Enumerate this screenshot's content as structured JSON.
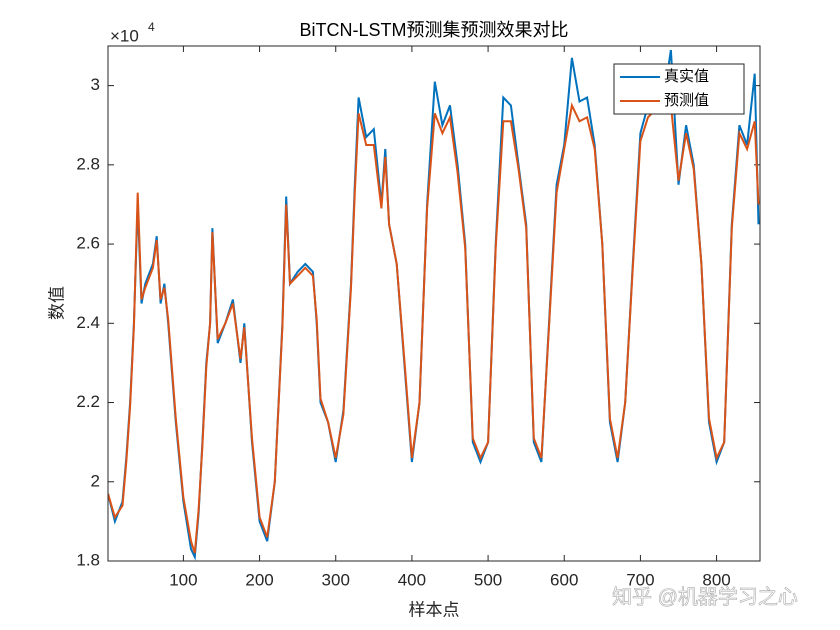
{
  "chart_data": {
    "type": "line",
    "title": "BiTCN-LSTM预测集预测效果对比",
    "xlabel": "样本点",
    "ylabel": "数值",
    "y_exponent_base": "×10",
    "y_exponent_power": "4",
    "watermark": "知乎 @机器学习之心",
    "xlim": [
      1,
      857
    ],
    "ylim": [
      18000,
      31000
    ],
    "xticks": [
      100,
      200,
      300,
      400,
      500,
      600,
      700,
      800
    ],
    "yticks": [
      {
        "value": 18000,
        "label": "1.8"
      },
      {
        "value": 20000,
        "label": "2"
      },
      {
        "value": 22000,
        "label": "2.2"
      },
      {
        "value": 24000,
        "label": "2.4"
      },
      {
        "value": 26000,
        "label": "2.6"
      },
      {
        "value": 28000,
        "label": "2.8"
      },
      {
        "value": 30000,
        "label": "3"
      }
    ],
    "legend": "upper right",
    "x": [
      1,
      10,
      20,
      25,
      30,
      35,
      40,
      45,
      50,
      60,
      65,
      70,
      75,
      80,
      90,
      100,
      110,
      115,
      120,
      125,
      130,
      135,
      138,
      145,
      155,
      165,
      175,
      180,
      190,
      200,
      210,
      220,
      230,
      235,
      240,
      250,
      260,
      270,
      275,
      280,
      290,
      300,
      310,
      320,
      325,
      330,
      340,
      350,
      360,
      365,
      370,
      380,
      390,
      400,
      410,
      420,
      430,
      440,
      450,
      460,
      470,
      480,
      490,
      500,
      510,
      520,
      530,
      540,
      550,
      560,
      570,
      580,
      590,
      600,
      610,
      620,
      630,
      640,
      650,
      660,
      670,
      680,
      690,
      700,
      710,
      720,
      730,
      740,
      750,
      760,
      770,
      780,
      790,
      800,
      810,
      820,
      830,
      840,
      850,
      855
    ],
    "series": [
      {
        "name": "真实值",
        "color": "#0072BD",
        "values": [
          19700,
          19000,
          19500,
          20600,
          22000,
          24000,
          27000,
          24500,
          25000,
          25500,
          26200,
          24500,
          25000,
          24000,
          21500,
          19500,
          18300,
          18100,
          19200,
          21000,
          23000,
          24000,
          26400,
          23500,
          24000,
          24600,
          23000,
          24000,
          21000,
          19000,
          18500,
          20000,
          24000,
          27200,
          25000,
          25300,
          25500,
          25300,
          24000,
          22000,
          21500,
          20500,
          21800,
          25000,
          27500,
          29700,
          28700,
          28900,
          27000,
          28400,
          26500,
          25500,
          23000,
          20500,
          22000,
          27000,
          30100,
          29000,
          29500,
          28000,
          26000,
          21000,
          20500,
          21000,
          26000,
          29700,
          29500,
          28000,
          26500,
          21000,
          20500,
          24000,
          27500,
          28500,
          30700,
          29600,
          29700,
          28500,
          26000,
          21500,
          20500,
          22000,
          25500,
          28800,
          29500,
          30300,
          29600,
          30900,
          27500,
          29000,
          28000,
          25500,
          21500,
          20500,
          21000,
          26500,
          29000,
          28500,
          30300,
          26500
        ]
      },
      {
        "name": "预测值",
        "color": "#D95319",
        "values": [
          19700,
          19100,
          19400,
          20500,
          21900,
          23900,
          27300,
          24600,
          24900,
          25400,
          26100,
          24600,
          24900,
          24100,
          21600,
          19600,
          18500,
          18200,
          19300,
          20900,
          22900,
          24000,
          26300,
          23600,
          24000,
          24500,
          23100,
          23900,
          21100,
          19100,
          18600,
          20000,
          23900,
          27000,
          25000,
          25200,
          25400,
          25200,
          24100,
          22100,
          21500,
          20600,
          21700,
          24900,
          27300,
          29300,
          28500,
          28500,
          26900,
          28200,
          26500,
          25500,
          23100,
          20600,
          22000,
          26900,
          29300,
          28800,
          29200,
          27800,
          25900,
          21100,
          20600,
          21000,
          25900,
          29100,
          29100,
          27900,
          26400,
          21100,
          20600,
          23900,
          27300,
          28400,
          29500,
          29100,
          29200,
          28400,
          26000,
          21600,
          20600,
          22000,
          25400,
          28600,
          29200,
          29400,
          29300,
          29500,
          27600,
          28800,
          27900,
          25500,
          21600,
          20600,
          21000,
          26400,
          28800,
          28400,
          29100,
          27000
        ]
      }
    ]
  }
}
